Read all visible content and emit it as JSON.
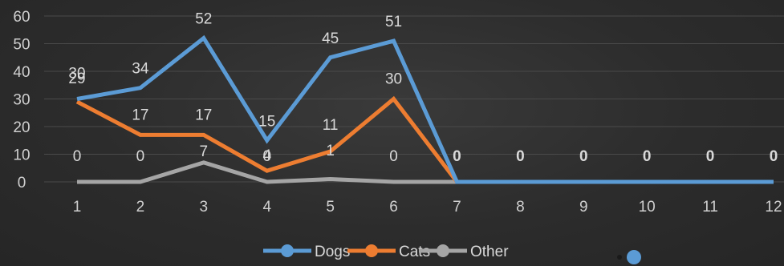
{
  "chart_data": {
    "type": "line",
    "categories": [
      "1",
      "2",
      "3",
      "4",
      "5",
      "6",
      "7",
      "8",
      "9",
      "10",
      "11",
      "12"
    ],
    "ylim": [
      0,
      60
    ],
    "yticks": [
      "0",
      "10",
      "20",
      "30",
      "40",
      "50",
      "60"
    ],
    "grid": true,
    "legend_position": "bottom",
    "series": [
      {
        "name": "Dogs",
        "color": "#5b9bd5",
        "values": [
          30,
          34,
          52,
          15,
          45,
          51,
          0,
          0,
          0,
          0,
          0,
          0
        ],
        "labels": [
          "30",
          "34",
          "52",
          "15",
          "45",
          "51",
          "0",
          "0",
          "0",
          "0",
          "0",
          "0"
        ]
      },
      {
        "name": "Cats",
        "color": "#ed7d31",
        "values": [
          29,
          17,
          17,
          4,
          11,
          30,
          0,
          0,
          0,
          0,
          0,
          0
        ],
        "labels": [
          "29",
          "17",
          "17",
          "4",
          "11",
          "30",
          "0",
          "0",
          "0",
          "0",
          "0",
          "0"
        ]
      },
      {
        "name": "Other",
        "color": "#a5a5a5",
        "values": [
          0,
          0,
          7,
          0,
          1,
          0,
          0,
          0,
          0,
          0,
          0,
          0
        ],
        "labels": [
          "0",
          "0",
          "7",
          "0",
          "1",
          "0",
          "0",
          "0",
          "0",
          "0",
          "0",
          "0"
        ]
      }
    ],
    "stray_marker_color": "#5b9bd5"
  }
}
